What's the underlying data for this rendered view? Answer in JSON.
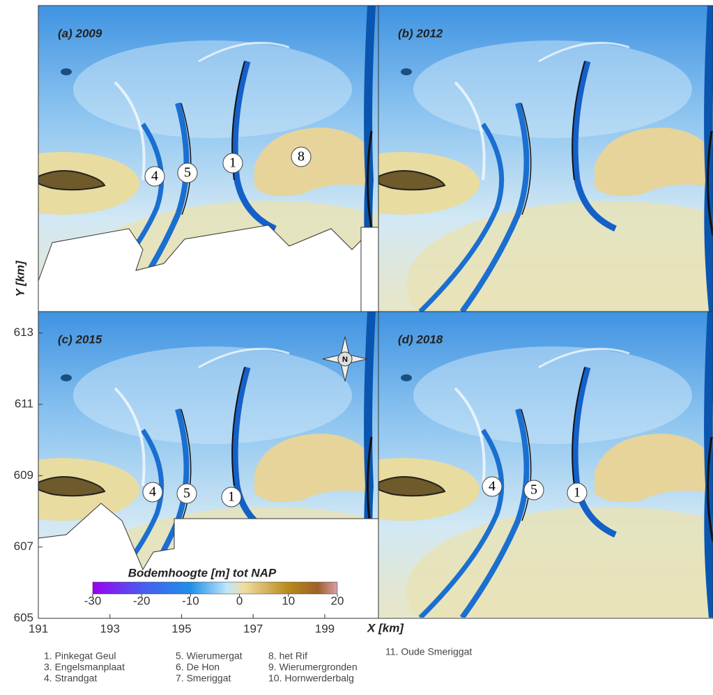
{
  "axes": {
    "x_label": "X [km]",
    "y_label": "Y [km]",
    "xlim": [
      191,
      200.5
    ],
    "ylim": [
      605,
      613.6
    ],
    "xticks": [
      191,
      193,
      195,
      197,
      199
    ],
    "yticks": [
      605,
      607,
      609,
      611,
      613
    ]
  },
  "panels": [
    {
      "label": "(a) 2009",
      "markers": [
        "4",
        "5",
        "1",
        "8"
      ]
    },
    {
      "label": "(b) 2012",
      "markers": []
    },
    {
      "label": "(c) 2015",
      "markers": [
        "4",
        "5",
        "1"
      ]
    },
    {
      "label": "(d) 2018",
      "markers": [
        "4",
        "5",
        "1"
      ]
    }
  ],
  "colorbar": {
    "title": "Bodemhoogte  [m] tot NAP",
    "lim": [
      -30,
      20
    ],
    "ticks": [
      -30,
      -20,
      -10,
      0,
      10,
      20
    ]
  },
  "legend": [
    [
      "1. Pinkegat Geul",
      "3. Engelsmanplaat",
      "4. Strandgat"
    ],
    [
      "5. Wierumergat",
      "6. De Hon",
      "7. Smeriggat"
    ],
    [
      "8. het Rif",
      "9. Wierumergronden",
      "10. Hornwerderbalg"
    ],
    [
      "11. Oude Smeriggat"
    ]
  ]
}
